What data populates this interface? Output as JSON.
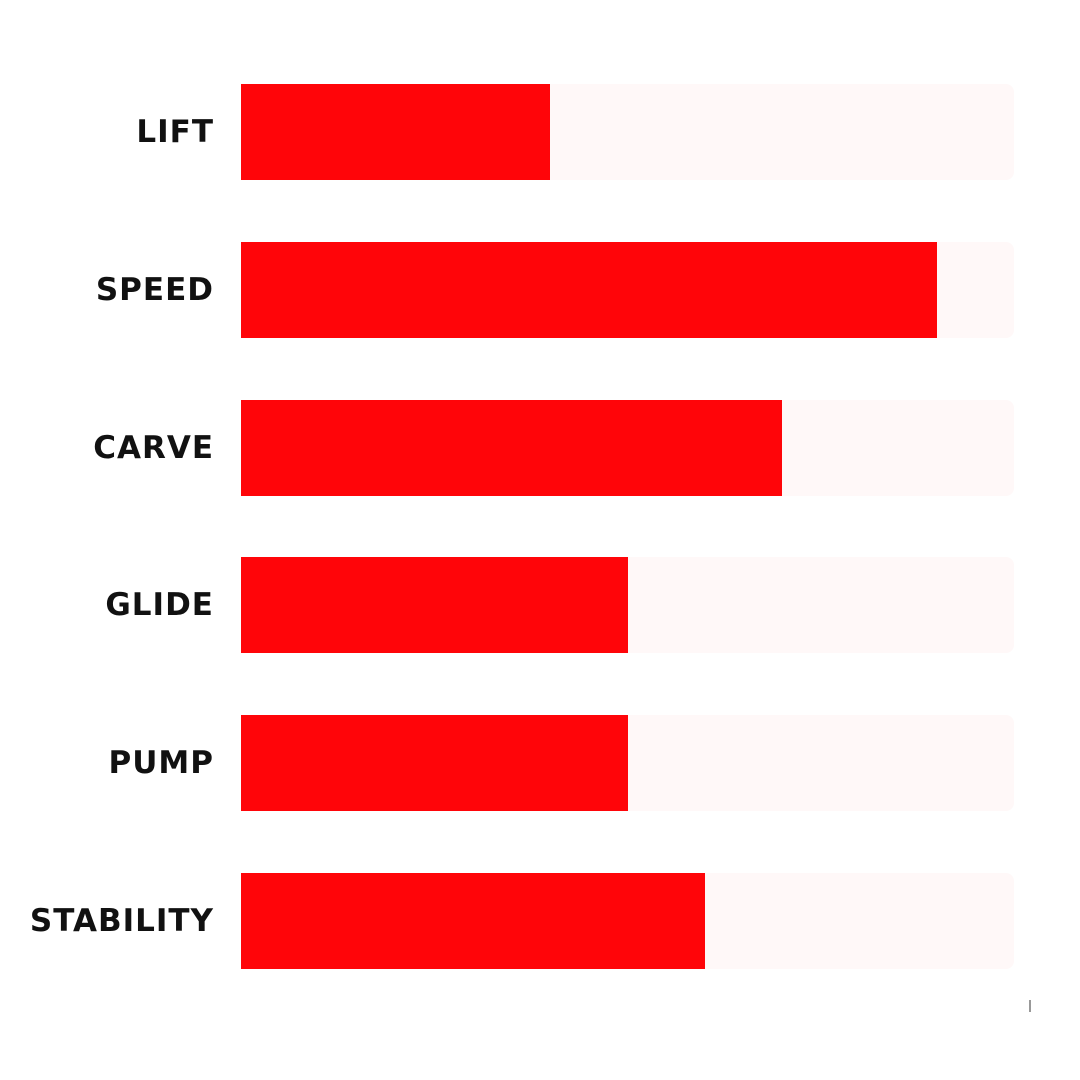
{
  "chart_data": {
    "type": "bar",
    "orientation": "horizontal",
    "categories": [
      "LIFT",
      "SPEED",
      "CARVE",
      "GLIDE",
      "PUMP",
      "STABILITY"
    ],
    "values": [
      4,
      9,
      7,
      5,
      5,
      6
    ],
    "xlim": [
      0,
      10
    ],
    "title": "",
    "xlabel": "",
    "ylabel": "",
    "grid": false,
    "colors": {
      "bar": "#ff0509",
      "track": "#fff8f8",
      "label": "#111111"
    }
  }
}
